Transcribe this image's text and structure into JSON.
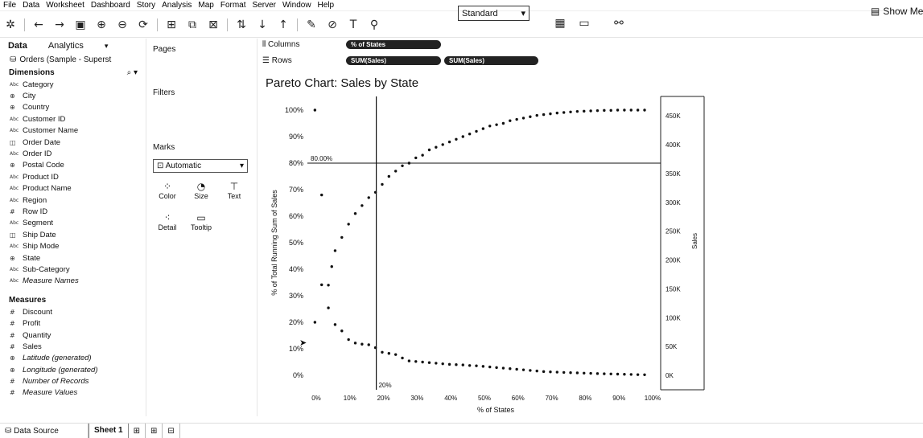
{
  "menu": [
    "File",
    "Data",
    "Worksheet",
    "Dashboard",
    "Story",
    "Analysis",
    "Map",
    "Format",
    "Server",
    "Window",
    "Help"
  ],
  "toolbar": {
    "fit_select": "Standard",
    "show_me": "Show Me"
  },
  "data_pane": {
    "tabs": [
      "Data",
      "Analytics"
    ],
    "datasource": "Orders (Sample - Superst",
    "dimensions_label": "Dimensions",
    "dimensions": [
      {
        "label": "Category",
        "icon": "Abc"
      },
      {
        "label": "City",
        "icon": "globe"
      },
      {
        "label": "Country",
        "icon": "globe"
      },
      {
        "label": "Customer ID",
        "icon": "Abc"
      },
      {
        "label": "Customer Name",
        "icon": "Abc"
      },
      {
        "label": "Order Date",
        "icon": "date"
      },
      {
        "label": "Order ID",
        "icon": "Abc"
      },
      {
        "label": "Postal Code",
        "icon": "globe"
      },
      {
        "label": "Product ID",
        "icon": "Abc"
      },
      {
        "label": "Product Name",
        "icon": "Abc"
      },
      {
        "label": "Region",
        "icon": "Abc"
      },
      {
        "label": "Row ID",
        "icon": "#"
      },
      {
        "label": "Segment",
        "icon": "Abc"
      },
      {
        "label": "Ship Date",
        "icon": "date"
      },
      {
        "label": "Ship Mode",
        "icon": "Abc"
      },
      {
        "label": "State",
        "icon": "globe"
      },
      {
        "label": "Sub-Category",
        "icon": "Abc"
      },
      {
        "label": "Measure Names",
        "icon": "Abc",
        "italic": true
      }
    ],
    "measures_label": "Measures",
    "measures": [
      {
        "label": "Discount",
        "icon": "#"
      },
      {
        "label": "Profit",
        "icon": "#"
      },
      {
        "label": "Quantity",
        "icon": "#"
      },
      {
        "label": "Sales",
        "icon": "#"
      },
      {
        "label": "Latitude (generated)",
        "icon": "globe",
        "italic": true
      },
      {
        "label": "Longitude (generated)",
        "icon": "globe",
        "italic": true
      },
      {
        "label": "Number of Records",
        "icon": "#",
        "italic": true
      },
      {
        "label": "Measure Values",
        "icon": "#",
        "italic": true
      }
    ]
  },
  "shelves": {
    "pages": "Pages",
    "filters": "Filters",
    "marks": "Marks",
    "marks_type": "Automatic",
    "mark_buttons": [
      "Color",
      "Size",
      "Text",
      "Detail",
      "Tooltip"
    ],
    "columns_label": "Columns",
    "rows_label": "Rows",
    "columns_pill": "% of States",
    "rows_pills": [
      "SUM(Sales)",
      "SUM(Sales)"
    ]
  },
  "chart_data": {
    "type": "scatter",
    "title": "Pareto Chart: Sales by State",
    "xlabel": "% of States",
    "ylabel_left": "% of Total Running Sum of Sales",
    "ylabel_right": "Sales",
    "x_ticks": [
      "0%",
      "10%",
      "20%",
      "30%",
      "40%",
      "50%",
      "60%",
      "70%",
      "80%",
      "90%",
      "100%"
    ],
    "y_left_ticks": [
      "0%",
      "10%",
      "20%",
      "30%",
      "40%",
      "50%",
      "60%",
      "70%",
      "80%",
      "90%",
      "100%"
    ],
    "y_right_ticks": [
      "0K",
      "50K",
      "100K",
      "150K",
      "200K",
      "250K",
      "300K",
      "350K",
      "400K",
      "450K"
    ],
    "xlim": [
      0,
      1
    ],
    "ylim_left": [
      0,
      1
    ],
    "ylim_right": [
      0,
      460000
    ],
    "reference_lines": {
      "x": 0.2,
      "x_label": "20%",
      "y": 0.8,
      "y_label": "80.00%"
    },
    "series": [
      {
        "name": "% of Total Running Sum of Sales",
        "axis": "left",
        "points": [
          [
            0.02,
            1.0
          ],
          [
            0.02,
            0.2
          ],
          [
            0.04,
            0.68
          ],
          [
            0.06,
            0.34
          ],
          [
            0.07,
            0.41
          ],
          [
            0.08,
            0.47
          ],
          [
            0.1,
            0.52
          ],
          [
            0.12,
            0.57
          ],
          [
            0.14,
            0.61
          ],
          [
            0.16,
            0.64
          ],
          [
            0.18,
            0.67
          ],
          [
            0.2,
            0.69
          ],
          [
            0.22,
            0.72
          ],
          [
            0.24,
            0.75
          ],
          [
            0.26,
            0.77
          ],
          [
            0.28,
            0.79
          ],
          [
            0.3,
            0.8
          ],
          [
            0.32,
            0.82
          ],
          [
            0.34,
            0.83
          ],
          [
            0.36,
            0.85
          ],
          [
            0.38,
            0.86
          ],
          [
            0.4,
            0.87
          ],
          [
            0.42,
            0.88
          ],
          [
            0.44,
            0.89
          ],
          [
            0.46,
            0.9
          ],
          [
            0.48,
            0.91
          ],
          [
            0.5,
            0.92
          ],
          [
            0.52,
            0.93
          ],
          [
            0.54,
            0.94
          ],
          [
            0.56,
            0.945
          ],
          [
            0.58,
            0.95
          ],
          [
            0.6,
            0.96
          ],
          [
            0.62,
            0.965
          ],
          [
            0.64,
            0.97
          ],
          [
            0.66,
            0.975
          ],
          [
            0.68,
            0.98
          ],
          [
            0.7,
            0.983
          ],
          [
            0.72,
            0.986
          ],
          [
            0.74,
            0.989
          ],
          [
            0.76,
            0.991
          ],
          [
            0.78,
            0.993
          ],
          [
            0.8,
            0.995
          ],
          [
            0.82,
            0.996
          ],
          [
            0.84,
            0.997
          ],
          [
            0.86,
            0.998
          ],
          [
            0.88,
            0.999
          ],
          [
            0.9,
            0.999
          ],
          [
            0.92,
            1.0
          ],
          [
            0.94,
            1.0
          ],
          [
            0.96,
            1.0
          ],
          [
            0.98,
            1.0
          ],
          [
            1.0,
            1.0
          ]
        ]
      },
      {
        "name": "Sales",
        "axis": "right",
        "points": [
          [
            0.04,
            157000
          ],
          [
            0.06,
            117000
          ],
          [
            0.08,
            88000
          ],
          [
            0.1,
            77000
          ],
          [
            0.12,
            62000
          ],
          [
            0.14,
            56000
          ],
          [
            0.16,
            54000
          ],
          [
            0.18,
            53000
          ],
          [
            0.2,
            48000
          ],
          [
            0.22,
            40000
          ],
          [
            0.24,
            38000
          ],
          [
            0.26,
            36000
          ],
          [
            0.28,
            30000
          ],
          [
            0.3,
            25000
          ],
          [
            0.32,
            24000
          ],
          [
            0.34,
            23000
          ],
          [
            0.36,
            22000
          ],
          [
            0.38,
            21000
          ],
          [
            0.4,
            20000
          ],
          [
            0.42,
            19000
          ],
          [
            0.44,
            18500
          ],
          [
            0.46,
            18000
          ],
          [
            0.48,
            17000
          ],
          [
            0.5,
            16500
          ],
          [
            0.52,
            15500
          ],
          [
            0.54,
            14500
          ],
          [
            0.56,
            13500
          ],
          [
            0.58,
            12500
          ],
          [
            0.6,
            11500
          ],
          [
            0.62,
            10500
          ],
          [
            0.64,
            9500
          ],
          [
            0.66,
            8500
          ],
          [
            0.68,
            7500
          ],
          [
            0.7,
            6500
          ],
          [
            0.72,
            6000
          ],
          [
            0.74,
            5500
          ],
          [
            0.76,
            5000
          ],
          [
            0.78,
            4600
          ],
          [
            0.8,
            4200
          ],
          [
            0.82,
            3800
          ],
          [
            0.84,
            3400
          ],
          [
            0.86,
            3000
          ],
          [
            0.88,
            2700
          ],
          [
            0.9,
            2400
          ],
          [
            0.92,
            2100
          ],
          [
            0.94,
            1800
          ],
          [
            0.96,
            1500
          ],
          [
            0.98,
            1200
          ],
          [
            1.0,
            1000
          ]
        ]
      }
    ]
  },
  "bottom_tabs": {
    "data_source": "Data Source",
    "sheet": "Sheet 1"
  }
}
